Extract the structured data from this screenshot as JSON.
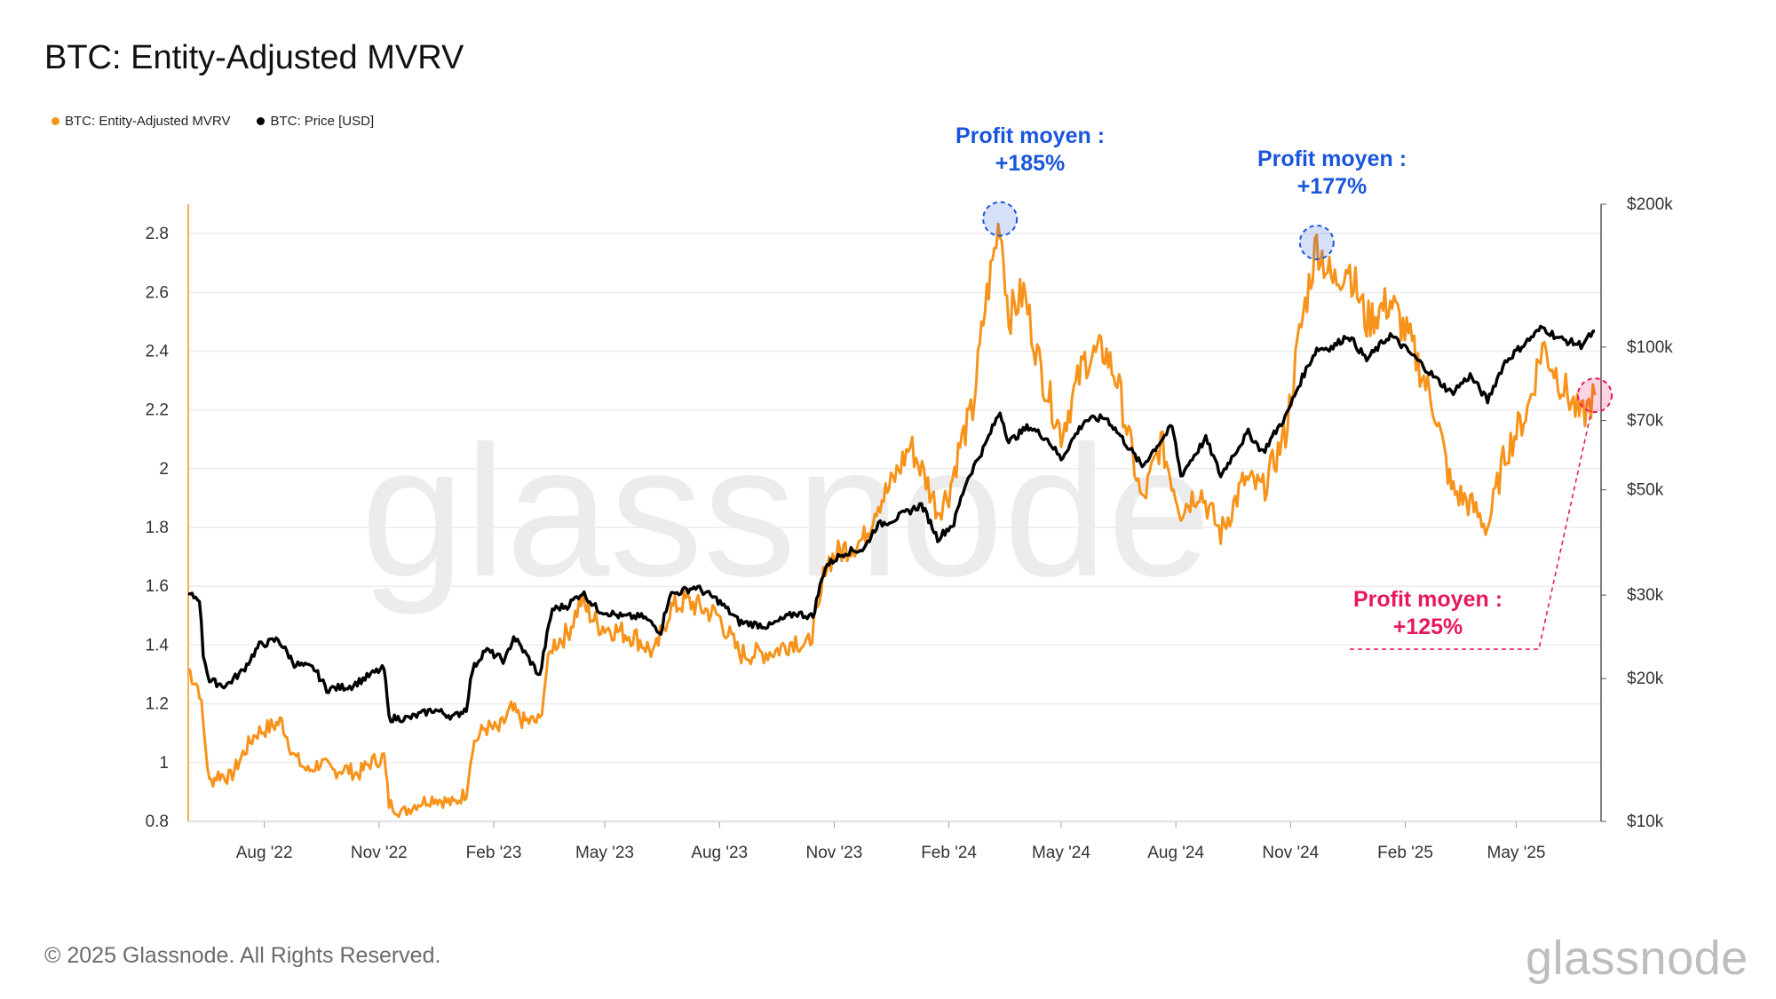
{
  "title": "BTC: Entity-Adjusted MVRV",
  "legend": [
    {
      "label": "BTC: Entity-Adjusted MVRV",
      "color": "#f7931a"
    },
    {
      "label": "BTC: Price [USD]",
      "color": "#000000"
    }
  ],
  "watermark": "glassnode",
  "footer": "© 2025 Glassnode. All Rights Reserved.",
  "brand": "glassnode",
  "annotations": [
    {
      "line1": "Profit moyen :",
      "line2": "+185%",
      "color": "#1a56db",
      "date": "2024-03-13",
      "mvrv": 2.85
    },
    {
      "line1": "Profit moyen :",
      "line2": "+177%",
      "color": "#1a56db",
      "date": "2024-11-22",
      "mvrv": 2.77
    },
    {
      "line1": "Profit moyen :",
      "line2": "+125%",
      "color": "#e8185c",
      "date": "2025-07-03",
      "mvrv": 2.25
    }
  ],
  "chart_data": {
    "type": "line",
    "x_range": [
      "2022-06-01",
      "2025-07-08"
    ],
    "xticks": [
      {
        "date": "2022-08-01",
        "label": "Aug '22"
      },
      {
        "date": "2022-11-01",
        "label": "Nov '22"
      },
      {
        "date": "2023-02-01",
        "label": "Feb '23"
      },
      {
        "date": "2023-05-01",
        "label": "May '23"
      },
      {
        "date": "2023-08-01",
        "label": "Aug '23"
      },
      {
        "date": "2023-11-01",
        "label": "Nov '23"
      },
      {
        "date": "2024-02-01",
        "label": "Feb '24"
      },
      {
        "date": "2024-05-01",
        "label": "May '24"
      },
      {
        "date": "2024-08-01",
        "label": "Aug '24"
      },
      {
        "date": "2024-11-01",
        "label": "Nov '24"
      },
      {
        "date": "2025-02-01",
        "label": "Feb '25"
      },
      {
        "date": "2025-05-01",
        "label": "May '25"
      }
    ],
    "left_axis": {
      "ylim": [
        0.8,
        2.9
      ],
      "ticks": [
        0.8,
        1,
        1.2,
        1.4,
        1.6,
        1.8,
        2,
        2.2,
        2.4,
        2.6,
        2.8
      ],
      "tick_labels": [
        "0.8",
        "1",
        "1.2",
        "1.4",
        "1.6",
        "1.8",
        "2",
        "2.2",
        "2.4",
        "2.6",
        "2.8"
      ]
    },
    "right_axis": {
      "scale": "log",
      "ylim": [
        10000,
        200000
      ],
      "ticks": [
        10000,
        20000,
        30000,
        50000,
        70000,
        100000,
        200000
      ],
      "tick_labels": [
        "$10k",
        "$20k",
        "$30k",
        "$50k",
        "$70k",
        "$100k",
        "$200k"
      ]
    },
    "grid": true,
    "legend_position": "top-left",
    "series": [
      {
        "name": "BTC: Entity-Adjusted MVRV",
        "axis": "left",
        "color": "#f7931a",
        "points": [
          [
            "2022-06-01",
            1.32
          ],
          [
            "2022-06-10",
            1.25
          ],
          [
            "2022-06-18",
            0.93
          ],
          [
            "2022-06-25",
            0.96
          ],
          [
            "2022-07-05",
            0.95
          ],
          [
            "2022-07-15",
            1.03
          ],
          [
            "2022-07-25",
            1.1
          ],
          [
            "2022-08-05",
            1.12
          ],
          [
            "2022-08-15",
            1.14
          ],
          [
            "2022-08-25",
            1.02
          ],
          [
            "2022-09-05",
            0.97
          ],
          [
            "2022-09-15",
            1.0
          ],
          [
            "2022-09-25",
            0.97
          ],
          [
            "2022-10-05",
            0.98
          ],
          [
            "2022-10-15",
            0.96
          ],
          [
            "2022-10-25",
            1.0
          ],
          [
            "2022-11-05",
            1.02
          ],
          [
            "2022-11-09",
            0.86
          ],
          [
            "2022-11-20",
            0.83
          ],
          [
            "2022-12-01",
            0.86
          ],
          [
            "2022-12-15",
            0.88
          ],
          [
            "2022-12-31",
            0.86
          ],
          [
            "2023-01-10",
            0.9
          ],
          [
            "2023-01-15",
            1.06
          ],
          [
            "2023-01-25",
            1.12
          ],
          [
            "2023-02-05",
            1.11
          ],
          [
            "2023-02-15",
            1.18
          ],
          [
            "2023-02-25",
            1.14
          ],
          [
            "2023-03-10",
            1.14
          ],
          [
            "2023-03-15",
            1.3
          ],
          [
            "2023-03-20",
            1.4
          ],
          [
            "2023-04-01",
            1.44
          ],
          [
            "2023-04-12",
            1.55
          ],
          [
            "2023-04-25",
            1.47
          ],
          [
            "2023-05-10",
            1.45
          ],
          [
            "2023-05-25",
            1.43
          ],
          [
            "2023-06-10",
            1.37
          ],
          [
            "2023-06-22",
            1.52
          ],
          [
            "2023-07-05",
            1.55
          ],
          [
            "2023-07-15",
            1.53
          ],
          [
            "2023-07-31",
            1.5
          ],
          [
            "2023-08-17",
            1.37
          ],
          [
            "2023-09-01",
            1.37
          ],
          [
            "2023-09-15",
            1.38
          ],
          [
            "2023-10-01",
            1.42
          ],
          [
            "2023-10-10",
            1.39
          ],
          [
            "2023-10-20",
            1.52
          ],
          [
            "2023-10-25",
            1.68
          ],
          [
            "2023-11-10",
            1.73
          ],
          [
            "2023-11-25",
            1.76
          ],
          [
            "2023-12-05",
            1.88
          ],
          [
            "2023-12-15",
            1.93
          ],
          [
            "2024-01-01",
            2.08
          ],
          [
            "2024-01-12",
            1.98
          ],
          [
            "2024-01-23",
            1.86
          ],
          [
            "2024-02-01",
            1.92
          ],
          [
            "2024-02-10",
            2.08
          ],
          [
            "2024-02-20",
            2.2
          ],
          [
            "2024-03-01",
            2.55
          ],
          [
            "2024-03-13",
            2.85
          ],
          [
            "2024-03-20",
            2.52
          ],
          [
            "2024-04-01",
            2.6
          ],
          [
            "2024-04-15",
            2.33
          ],
          [
            "2024-05-01",
            2.12
          ],
          [
            "2024-05-20",
            2.37
          ],
          [
            "2024-06-05",
            2.4
          ],
          [
            "2024-06-15",
            2.3
          ],
          [
            "2024-07-05",
            1.88
          ],
          [
            "2024-07-20",
            2.09
          ],
          [
            "2024-08-05",
            1.86
          ],
          [
            "2024-08-20",
            1.93
          ],
          [
            "2024-09-06",
            1.78
          ],
          [
            "2024-09-25",
            1.96
          ],
          [
            "2024-10-10",
            1.93
          ],
          [
            "2024-10-28",
            2.12
          ],
          [
            "2024-11-08",
            2.45
          ],
          [
            "2024-11-22",
            2.77
          ],
          [
            "2024-12-05",
            2.63
          ],
          [
            "2024-12-17",
            2.7
          ],
          [
            "2025-01-01",
            2.5
          ],
          [
            "2025-01-20",
            2.57
          ],
          [
            "2025-02-05",
            2.43
          ],
          [
            "2025-02-25",
            2.2
          ],
          [
            "2025-03-10",
            1.93
          ],
          [
            "2025-03-25",
            1.88
          ],
          [
            "2025-04-08",
            1.8
          ],
          [
            "2025-04-22",
            2.05
          ],
          [
            "2025-05-10",
            2.2
          ],
          [
            "2025-05-22",
            2.42
          ],
          [
            "2025-06-05",
            2.3
          ],
          [
            "2025-06-22",
            2.17
          ],
          [
            "2025-07-03",
            2.25
          ]
        ]
      },
      {
        "name": "BTC: Price [USD]",
        "axis": "right",
        "color": "#000000",
        "points": [
          [
            "2022-06-01",
            30000
          ],
          [
            "2022-06-10",
            29500
          ],
          [
            "2022-06-13",
            22500
          ],
          [
            "2022-06-18",
            19800
          ],
          [
            "2022-07-01",
            19300
          ],
          [
            "2022-07-15",
            20800
          ],
          [
            "2022-07-28",
            23500
          ],
          [
            "2022-08-12",
            24200
          ],
          [
            "2022-08-25",
            21500
          ],
          [
            "2022-09-10",
            21000
          ],
          [
            "2022-09-20",
            19000
          ],
          [
            "2022-10-10",
            19300
          ],
          [
            "2022-10-30",
            20700
          ],
          [
            "2022-11-05",
            21000
          ],
          [
            "2022-11-09",
            16500
          ],
          [
            "2022-11-25",
            16500
          ],
          [
            "2022-12-15",
            17200
          ],
          [
            "2022-12-31",
            16600
          ],
          [
            "2023-01-10",
            17300
          ],
          [
            "2023-01-15",
            20900
          ],
          [
            "2023-01-25",
            23000
          ],
          [
            "2023-02-10",
            21800
          ],
          [
            "2023-02-17",
            24500
          ],
          [
            "2023-03-10",
            20200
          ],
          [
            "2023-03-20",
            28000
          ],
          [
            "2023-04-01",
            28500
          ],
          [
            "2023-04-13",
            30400
          ],
          [
            "2023-04-25",
            28000
          ],
          [
            "2023-05-15",
            27000
          ],
          [
            "2023-06-01",
            27000
          ],
          [
            "2023-06-15",
            25100
          ],
          [
            "2023-06-22",
            30000
          ],
          [
            "2023-07-13",
            31200
          ],
          [
            "2023-07-31",
            29200
          ],
          [
            "2023-08-17",
            26300
          ],
          [
            "2023-09-10",
            25800
          ],
          [
            "2023-10-01",
            27500
          ],
          [
            "2023-10-15",
            27000
          ],
          [
            "2023-10-25",
            34500
          ],
          [
            "2023-11-10",
            37000
          ],
          [
            "2023-11-25",
            37500
          ],
          [
            "2023-12-05",
            42000
          ],
          [
            "2023-12-20",
            43500
          ],
          [
            "2024-01-10",
            46500
          ],
          [
            "2024-01-23",
            39500
          ],
          [
            "2024-02-05",
            42500
          ],
          [
            "2024-02-15",
            52000
          ],
          [
            "2024-03-01",
            62000
          ],
          [
            "2024-03-13",
            73000
          ],
          [
            "2024-03-20",
            63000
          ],
          [
            "2024-04-05",
            68000
          ],
          [
            "2024-04-20",
            64000
          ],
          [
            "2024-05-01",
            58000
          ],
          [
            "2024-05-20",
            70000
          ],
          [
            "2024-06-06",
            71000
          ],
          [
            "2024-06-25",
            61000
          ],
          [
            "2024-07-05",
            56000
          ],
          [
            "2024-07-29",
            68000
          ],
          [
            "2024-08-05",
            53500
          ],
          [
            "2024-08-25",
            64000
          ],
          [
            "2024-09-06",
            53500
          ],
          [
            "2024-09-28",
            66000
          ],
          [
            "2024-10-10",
            60000
          ],
          [
            "2024-10-29",
            72000
          ],
          [
            "2024-11-12",
            88000
          ],
          [
            "2024-11-22",
            99000
          ],
          [
            "2024-12-05",
            100000
          ],
          [
            "2024-12-17",
            106000
          ],
          [
            "2025-01-01",
            94000
          ],
          [
            "2025-01-20",
            106000
          ],
          [
            "2025-02-05",
            97000
          ],
          [
            "2025-02-25",
            86000
          ],
          [
            "2025-03-10",
            80000
          ],
          [
            "2025-03-25",
            87000
          ],
          [
            "2025-04-08",
            77000
          ],
          [
            "2025-04-22",
            93000
          ],
          [
            "2025-05-10",
            103000
          ],
          [
            "2025-05-22",
            110000
          ],
          [
            "2025-06-05",
            104000
          ],
          [
            "2025-06-22",
            101000
          ],
          [
            "2025-07-03",
            108000
          ]
        ]
      }
    ]
  }
}
